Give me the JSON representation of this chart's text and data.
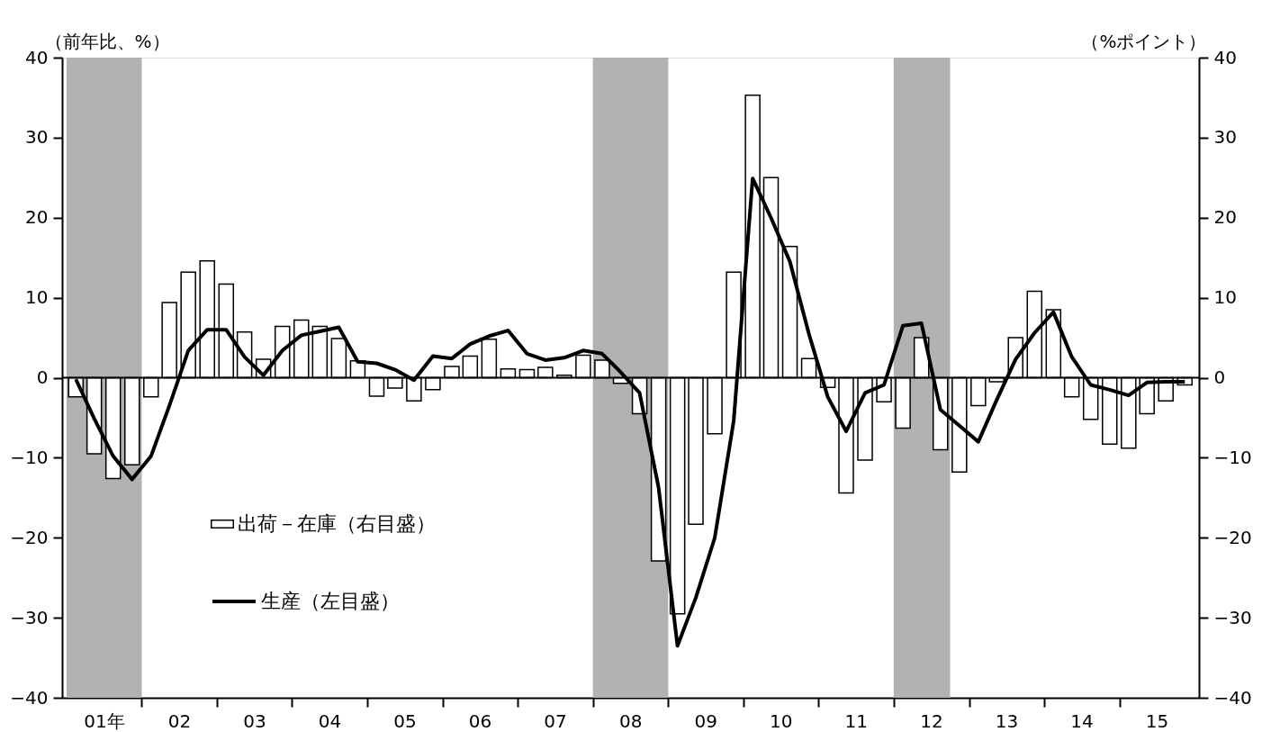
{
  "chart_data": {
    "type": "bar",
    "ylabel": "（前年比、%）",
    "y2label": "（%ポイント）",
    "x": [
      "2001-02-15",
      "2001-05-15",
      "2001-08-15",
      "2001-11-15",
      "2002-02-15",
      "2002-05-15",
      "2002-08-15",
      "2002-11-15",
      "2003-02-15",
      "2003-05-15",
      "2003-08-15",
      "2003-11-15",
      "2004-02-15",
      "2004-05-15",
      "2004-08-15",
      "2004-11-15",
      "2005-02-15",
      "2005-05-15",
      "2005-08-15",
      "2005-11-15",
      "2006-02-15",
      "2006-05-15",
      "2006-08-15",
      "2006-11-15",
      "2007-02-15",
      "2007-05-15",
      "2007-08-15",
      "2007-11-15",
      "2008-02-15",
      "2008-05-15",
      "2008-08-15",
      "2008-11-15",
      "2009-02-15",
      "2009-05-15",
      "2009-08-15",
      "2009-11-15",
      "2010-02-15",
      "2010-05-15",
      "2010-08-15",
      "2010-11-15",
      "2011-02-15",
      "2011-05-15",
      "2011-08-15",
      "2011-11-15",
      "2012-02-15",
      "2012-05-15",
      "2012-08-15",
      "2012-11-15",
      "2013-02-15",
      "2013-05-15",
      "2013-08-15",
      "2013-11-15",
      "2014-02-15",
      "2014-05-15",
      "2014-08-15",
      "2014-11-15",
      "2015-02-15",
      "2015-05-15",
      "2015-08-15",
      "2015-11-15"
    ],
    "xlim": [
      "2001-01-01",
      "2016-01-01"
    ],
    "xticks": [
      {
        "value": "2001-07-01",
        "label": "01年"
      },
      {
        "value": "2002-01-01",
        "label": null
      },
      {
        "value": "2002-07-01",
        "label": "02"
      },
      {
        "value": "2003-01-01",
        "label": null
      },
      {
        "value": "2003-07-01",
        "label": "03"
      },
      {
        "value": "2004-01-01",
        "label": null
      },
      {
        "value": "2004-07-01",
        "label": "04"
      },
      {
        "value": "2005-01-01",
        "label": null
      },
      {
        "value": "2005-07-01",
        "label": "05"
      },
      {
        "value": "2006-01-01",
        "label": null
      },
      {
        "value": "2006-07-01",
        "label": "06"
      },
      {
        "value": "2007-01-01",
        "label": null
      },
      {
        "value": "2007-07-01",
        "label": "07"
      },
      {
        "value": "2008-01-01",
        "label": null
      },
      {
        "value": "2008-07-01",
        "label": "08"
      },
      {
        "value": "2009-01-01",
        "label": null
      },
      {
        "value": "2009-07-01",
        "label": "09"
      },
      {
        "value": "2010-01-01",
        "label": null
      },
      {
        "value": "2010-07-01",
        "label": "10"
      },
      {
        "value": "2011-01-01",
        "label": null
      },
      {
        "value": "2011-07-01",
        "label": "11"
      },
      {
        "value": "2012-01-01",
        "label": null
      },
      {
        "value": "2012-07-01",
        "label": "12"
      },
      {
        "value": "2013-01-01",
        "label": null
      },
      {
        "value": "2013-07-01",
        "label": "13"
      },
      {
        "value": "2014-01-01",
        "label": null
      },
      {
        "value": "2014-07-01",
        "label": "14"
      },
      {
        "value": "2015-01-01",
        "label": null
      },
      {
        "value": "2015-07-01",
        "label": "15"
      }
    ],
    "ylim": [
      -40,
      40
    ],
    "yticks": [
      -40,
      -30,
      -20,
      -10,
      0,
      10,
      20,
      30,
      40
    ],
    "y2lim": [
      -40,
      40
    ],
    "y2ticks": [
      -40,
      -30,
      -20,
      -10,
      0,
      10,
      20,
      30,
      40
    ],
    "series": [
      {
        "name": "出荷－在庫（右目盛）",
        "axis": "y2",
        "color": "#ffffff",
        "values": [
          -2.4,
          -9.5,
          -12.6,
          -10.9,
          -2.4,
          9.4,
          13.2,
          14.6,
          11.7,
          5.7,
          2.3,
          6.4,
          7.2,
          6.4,
          4.9,
          2.1,
          -2.3,
          -1.3,
          -2.9,
          -1.5,
          1.4,
          2.7,
          4.8,
          1.1,
          1.0,
          1.3,
          0.3,
          2.8,
          2.2,
          -0.7,
          -4.5,
          -22.9,
          -29.5,
          -18.3,
          -7.0,
          13.2,
          35.3,
          25.0,
          16.4,
          2.4,
          -1.2,
          -14.4,
          -10.3,
          -3.0,
          -6.3,
          5.0,
          -9.0,
          -11.8,
          -3.5,
          -0.5,
          5.0,
          10.8,
          8.5,
          -2.4,
          -5.2,
          -8.3,
          -8.8,
          -4.5,
          -2.9,
          -0.9
        ]
      },
      {
        "name": "生産（左目盛）",
        "type": "line",
        "color": "#000000",
        "values": [
          -0.2,
          -5.1,
          -9.8,
          -12.7,
          -9.8,
          -3.5,
          3.4,
          6.0,
          6.0,
          2.6,
          0.3,
          3.4,
          5.3,
          5.8,
          6.3,
          2.0,
          1.8,
          1.0,
          -0.3,
          2.7,
          2.4,
          4.2,
          5.2,
          5.9,
          3.0,
          2.2,
          2.5,
          3.4,
          3.0,
          0.7,
          -1.9,
          -13.7,
          -33.5,
          -27.5,
          -20.0,
          -5.4,
          24.9,
          20.0,
          14.5,
          5.5,
          -2.4,
          -6.7,
          -1.9,
          -0.9,
          6.5,
          6.8,
          -4.0,
          -6.0,
          -8.0,
          -2.8,
          2.3,
          5.6,
          8.2,
          2.6,
          -0.9,
          -1.5,
          -2.2,
          -0.6,
          -0.5,
          -0.5
        ]
      }
    ],
    "bands": [
      {
        "axis": "x",
        "from": "2001-01-01",
        "to": "2002-01-01",
        "color": "#b2b2b2"
      },
      {
        "axis": "x",
        "from": "2008-01-01",
        "to": "2009-01-01",
        "color": "#b2b2b2"
      },
      {
        "axis": "x",
        "from": "2012-01-01",
        "to": "2012-10-01",
        "color": "#b2b2b2"
      }
    ],
    "ref_lines": [
      {
        "axis": "y",
        "value": 0,
        "color": "#000000"
      }
    ],
    "legend": "left",
    "grid": false,
    "marker": "none",
    "line_style": "solid"
  }
}
